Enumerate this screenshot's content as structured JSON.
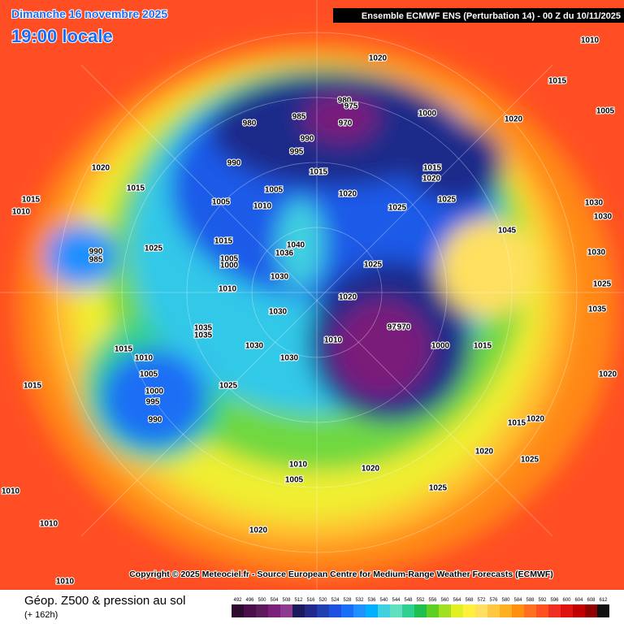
{
  "header": {
    "date": "Dimanche 16 novembre 2025",
    "time": "19:00 locale",
    "model": "Ensemble ECMWF ENS  (Perturbation 14)  -  00 Z du 10/11/2025"
  },
  "map": {
    "pressure_labels": [
      "1020",
      "1010",
      "1015",
      "1005",
      "980",
      "975",
      "985",
      "980",
      "970",
      "1000",
      "1020",
      "990",
      "995",
      "990",
      "1015",
      "1015",
      "1020",
      "1020",
      "1015",
      "1015",
      "1010",
      "1005",
      "1005",
      "1020",
      "1025",
      "1025",
      "1030",
      "1030",
      "1045",
      "1025",
      "1015",
      "1010",
      "1040",
      "1036",
      "990",
      "985",
      "1005",
      "1000",
      "1010",
      "1030",
      "1025",
      "1030",
      "1020",
      "975",
      "970",
      "1010",
      "1000",
      "1015",
      "1030",
      "1030",
      "1035",
      "1035",
      "1015",
      "1010",
      "1005",
      "1000",
      "995",
      "990",
      "1025",
      "1015",
      "1020",
      "1020",
      "1015",
      "1020",
      "1025",
      "1020",
      "1010",
      "1005",
      "1025",
      "1010",
      "1010",
      "1020",
      "1010",
      "1035",
      "1025",
      "1030"
    ],
    "copyright": "Copyright © 2025 Meteociel.fr - Source European Centre for Medium-Range Weather Forecasts (ECMWF)"
  },
  "footer": {
    "title": "Géop. Z500 & pression au sol",
    "lead": "(+ 162h)",
    "scale": {
      "values": [
        492,
        496,
        500,
        504,
        508,
        512,
        516,
        520,
        524,
        528,
        532,
        536,
        540,
        544,
        548,
        552,
        556,
        560,
        564,
        568,
        572,
        576,
        580,
        584,
        588,
        592,
        596,
        600,
        604,
        608,
        612
      ],
      "colors": [
        "#2b0a2e",
        "#4a0f4a",
        "#5c1a5c",
        "#7a1f7a",
        "#8e3a8e",
        "#1a1a5c",
        "#1f2a8a",
        "#2040b0",
        "#1f50e0",
        "#1a6ef5",
        "#1e90ff",
        "#00b0ff",
        "#40d0e0",
        "#60e0c0",
        "#30d090",
        "#20c050",
        "#60d020",
        "#a0e020",
        "#e0f020",
        "#fff040",
        "#ffe060",
        "#ffc840",
        "#ffb020",
        "#ff9010",
        "#ff7020",
        "#ff5020",
        "#f03020",
        "#e01010",
        "#c00000",
        "#900000",
        "#101010"
      ]
    }
  }
}
